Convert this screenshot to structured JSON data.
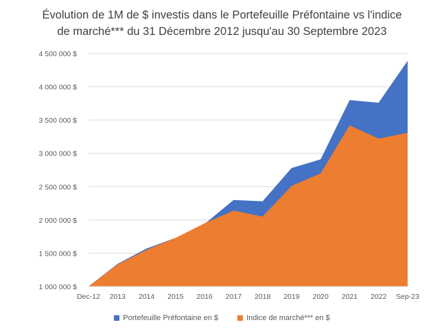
{
  "chart_data": {
    "type": "area",
    "title_line1": "Évolution de 1M de $ investis dans le Portefeuille Préfontaine vs l'indice",
    "title_line2": "de marché*** du 31 Décembre 2012 jusqu'au 30 Septembre 2023",
    "categories": [
      "Dec-12",
      "2013",
      "2014",
      "2015",
      "2016",
      "2017",
      "2018",
      "2019",
      "2020",
      "2021",
      "2022",
      "Sep-23"
    ],
    "y_ticks": [
      "1 000 000 $",
      "1 500 000 $",
      "2 000 000 $",
      "2 500 000 $",
      "3 000 000 $",
      "3 500 000 $",
      "4 000 000 $",
      "4 500 000 $"
    ],
    "ylim": [
      1000000,
      4500000
    ],
    "grid": true,
    "legend_position": "bottom",
    "series": [
      {
        "name": "Portefeuille Préfontaine  en $",
        "color": "#4472C4",
        "values": [
          1000000,
          1340000,
          1570000,
          1730000,
          1940000,
          2300000,
          2280000,
          2780000,
          2910000,
          3800000,
          3760000,
          4390000
        ]
      },
      {
        "name": "Indice de marché*** en $",
        "color": "#ED7D31",
        "values": [
          1000000,
          1330000,
          1550000,
          1730000,
          1950000,
          2140000,
          2050000,
          2510000,
          2700000,
          3420000,
          3220000,
          3310000
        ]
      }
    ]
  }
}
